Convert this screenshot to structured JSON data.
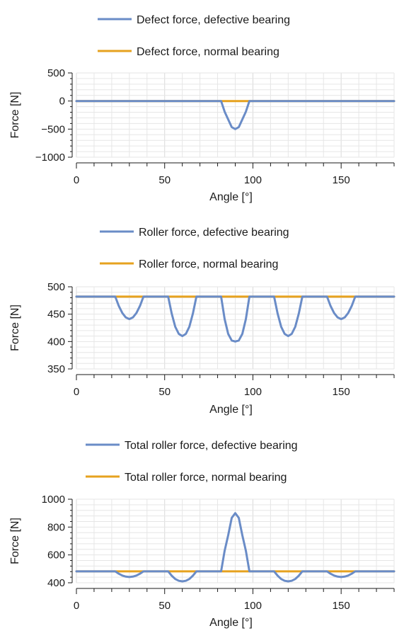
{
  "colors": {
    "defective": "#6a8cc7",
    "normal": "#e6a21f",
    "grid": "#e6e6e6",
    "axis": "#1a1a1a"
  },
  "chart_data": [
    {
      "type": "line",
      "xlabel": "Angle [°]",
      "ylabel": "Force [N]",
      "xlim": [
        0,
        180
      ],
      "ylim": [
        -1000,
        500
      ],
      "xticks": [
        0,
        50,
        100,
        150
      ],
      "yticks": [
        -1000,
        -500,
        0,
        500
      ],
      "grid": true,
      "legend_position": "top",
      "series": [
        {
          "name": "Defect force, defective bearing",
          "color": "defective",
          "x": [
            0,
            82,
            84,
            86,
            88,
            90,
            92,
            94,
            96,
            98,
            180
          ],
          "values": [
            0,
            0,
            -189,
            -327,
            -464,
            -500,
            -464,
            -327,
            -189,
            0,
            0
          ]
        },
        {
          "name": "Defect force, normal bearing",
          "color": "normal",
          "x": [
            0,
            180
          ],
          "values": [
            0,
            0
          ]
        }
      ]
    },
    {
      "type": "line",
      "xlabel": "Angle [°]",
      "ylabel": "Force [N]",
      "xlim": [
        0,
        180
      ],
      "ylim": [
        350,
        500
      ],
      "xticks": [
        0,
        50,
        100,
        150
      ],
      "yticks": [
        350,
        400,
        450,
        500
      ],
      "grid": true,
      "legend_position": "top",
      "series": [
        {
          "name": "Roller force, defective bearing",
          "color": "defective",
          "x": [
            0,
            22,
            24,
            26,
            28,
            30,
            32,
            34,
            36,
            38,
            52,
            54,
            56,
            58,
            60,
            62,
            64,
            66,
            68,
            82,
            84,
            86,
            88,
            90,
            92,
            94,
            96,
            98,
            112,
            114,
            116,
            118,
            120,
            122,
            124,
            126,
            128,
            142,
            144,
            146,
            148,
            150,
            152,
            154,
            156,
            158,
            180
          ],
          "values": [
            482,
            482,
            465,
            452,
            444,
            441,
            444,
            452,
            465,
            482,
            482,
            451,
            427,
            414,
            410,
            414,
            427,
            451,
            482,
            482,
            441,
            414,
            402,
            400,
            402,
            414,
            441,
            482,
            482,
            451,
            427,
            414,
            410,
            414,
            427,
            451,
            482,
            482,
            465,
            452,
            444,
            441,
            444,
            452,
            465,
            482,
            482
          ]
        },
        {
          "name": "Roller force, normal bearing",
          "color": "normal",
          "x": [
            0,
            180
          ],
          "values": [
            482,
            482
          ]
        }
      ]
    },
    {
      "type": "line",
      "xlabel": "Angle [°]",
      "ylabel": "Force [N]",
      "xlim": [
        0,
        180
      ],
      "ylim": [
        400,
        1000
      ],
      "xticks": [
        0,
        50,
        100,
        150
      ],
      "yticks": [
        400,
        600,
        800,
        1000
      ],
      "grid": true,
      "legend_position": "top",
      "series": [
        {
          "name": "Total roller force, defective bearing",
          "color": "defective",
          "x": [
            0,
            22,
            24,
            26,
            28,
            30,
            32,
            34,
            36,
            38,
            52,
            54,
            56,
            58,
            60,
            62,
            64,
            66,
            68,
            82,
            84,
            86,
            88,
            90,
            92,
            94,
            96,
            98,
            112,
            114,
            116,
            118,
            120,
            122,
            124,
            126,
            128,
            142,
            144,
            146,
            148,
            150,
            152,
            154,
            156,
            158,
            180
          ],
          "values": [
            482,
            482,
            465,
            452,
            444,
            441,
            444,
            452,
            465,
            482,
            482,
            451,
            427,
            414,
            410,
            414,
            427,
            451,
            482,
            482,
            630,
            741,
            866,
            900,
            866,
            741,
            630,
            482,
            482,
            451,
            427,
            414,
            410,
            414,
            427,
            451,
            482,
            482,
            465,
            452,
            444,
            441,
            444,
            452,
            465,
            482,
            482
          ]
        },
        {
          "name": "Total roller force, normal bearing",
          "color": "normal",
          "x": [
            0,
            180
          ],
          "values": [
            482,
            482
          ]
        }
      ]
    }
  ]
}
